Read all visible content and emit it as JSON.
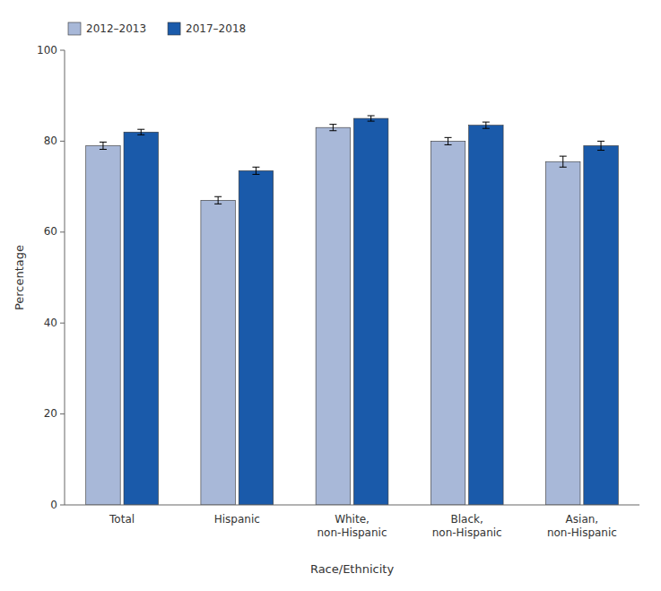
{
  "chart_data": {
    "type": "bar",
    "categories": [
      "Total",
      "Hispanic",
      "White,\nnon-Hispanic",
      "Black,\nnon-Hispanic",
      "Asian,\nnon-Hispanic"
    ],
    "series": [
      {
        "name": "2012–2013",
        "color": "#a8b8d8",
        "values": [
          79.0,
          67.0,
          83.0,
          80.0,
          75.5
        ],
        "errors": [
          0.8,
          0.8,
          0.7,
          0.8,
          1.2
        ]
      },
      {
        "name": "2017–2018",
        "color": "#1a5aaa",
        "values": [
          82.0,
          73.5,
          85.0,
          83.5,
          79.0
        ],
        "errors": [
          0.6,
          0.8,
          0.6,
          0.7,
          1.0
        ]
      }
    ],
    "xlabel": "Race/Ethnicity",
    "ylabel": "Percentage",
    "ylim": [
      0,
      100
    ],
    "yticks": [
      0,
      20,
      40,
      60,
      80,
      100
    ],
    "grid": false,
    "legend": "upper left"
  }
}
